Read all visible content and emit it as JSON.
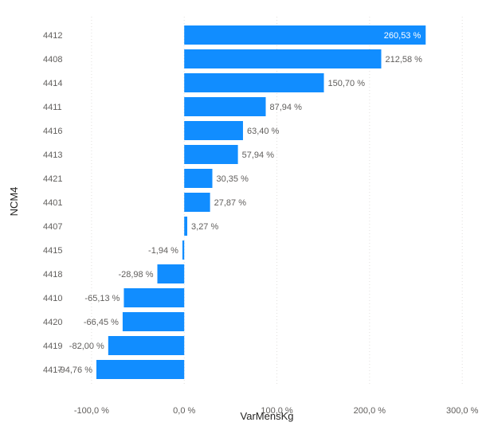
{
  "chart_data": {
    "type": "bar",
    "orientation": "horizontal",
    "title": "",
    "xlabel": "VarMensKg",
    "ylabel": "NCM4",
    "categories": [
      "4412",
      "4408",
      "4414",
      "4411",
      "4416",
      "4413",
      "4421",
      "4401",
      "4407",
      "4415",
      "4418",
      "4410",
      "4420",
      "4419",
      "4417"
    ],
    "values": [
      260.53,
      212.58,
      150.7,
      87.94,
      63.4,
      57.94,
      30.35,
      27.87,
      3.27,
      -1.94,
      -28.98,
      -65.13,
      -66.45,
      -82.0,
      -94.76
    ],
    "value_labels": [
      "260,53 %",
      "212,58 %",
      "150,70 %",
      "87,94 %",
      "63,40 %",
      "57,94 %",
      "30,35 %",
      "27,87 %",
      "3,27 %",
      "-1,94 %",
      "-28,98 %",
      "-65,13 %",
      "-66,45 %",
      "-82,00 %",
      "-94,76 %"
    ],
    "xlim": [
      -130,
      305
    ],
    "x_ticks": [
      -100,
      0,
      100,
      200,
      300
    ],
    "x_tick_labels": [
      "-100,0 %",
      "0,0 %",
      "100,0 %",
      "200,0 %",
      "300,0 %"
    ],
    "grid": "vertical dotted",
    "legend": "none",
    "colors": {
      "bar": "#118dff",
      "label": "#605e5c",
      "axis_title": "#252423",
      "grid": "#e1dfdd"
    }
  }
}
